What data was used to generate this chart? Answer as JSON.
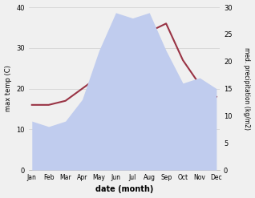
{
  "months": [
    "Jan",
    "Feb",
    "Mar",
    "Apr",
    "May",
    "Jun",
    "Jul",
    "Aug",
    "Sep",
    "Oct",
    "Nov",
    "Dec"
  ],
  "temp": [
    16,
    16,
    17,
    20,
    23,
    27,
    33,
    34,
    36,
    27,
    21,
    18
  ],
  "precip": [
    9,
    8,
    9,
    13,
    22,
    29,
    28,
    29,
    22,
    16,
    17,
    15
  ],
  "temp_color": "#993344",
  "precip_color_fill": "#c0ccee",
  "ylabel_left": "max temp (C)",
  "ylabel_right": "med. precipitation (kg/m2)",
  "xlabel": "date (month)",
  "ylim_left": [
    0,
    40
  ],
  "ylim_right": [
    0,
    30
  ],
  "background_color": "#f0f0f0",
  "grid_color": "#d0d0d0"
}
